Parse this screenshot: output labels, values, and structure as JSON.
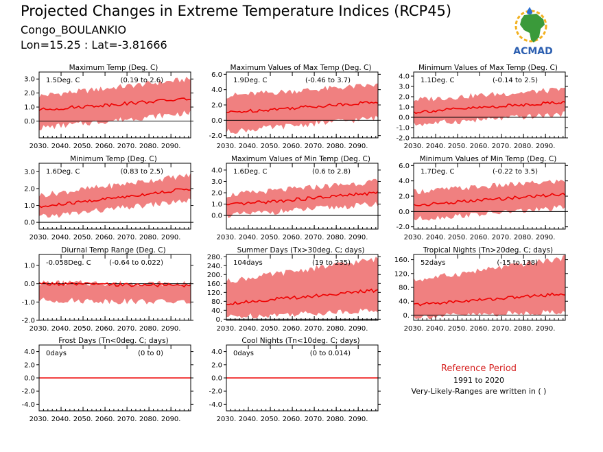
{
  "header": {
    "title": "Projected Changes in Extreme Temperature Indices (RCP45)",
    "location": "Congo_BOULANKIO",
    "coords": "Lon=15.25 : Lat=-3.81666"
  },
  "logo": {
    "text": "ACMAD",
    "icon": "africa-map-logo"
  },
  "reference": {
    "title": "Reference Period",
    "years": "1991 to 2020",
    "note": "Very-Likely-Ranges are written in ( )"
  },
  "colors": {
    "band": "#f08080",
    "line": "#ee0000",
    "zero": "#000000"
  },
  "chart_data": [
    {
      "type": "line",
      "title": "Maximum Temp (Deg. C)",
      "mean_label": "1.5Deg. C",
      "range_label": "(0.19 to 2.6)",
      "x": [
        2030,
        2099
      ],
      "xticks": [
        "2030.",
        "2040.",
        "2050.",
        "2060.",
        "2070.",
        "2080.",
        "2090."
      ],
      "ylim": [
        -1.2,
        3.5
      ],
      "yticks": [
        0,
        1,
        2,
        3
      ],
      "ytick_labels": [
        "0.0",
        "1.0",
        "2.0",
        "3.0"
      ],
      "series": [
        {
          "values": [
            0.8,
            1.6
          ],
          "band_low": [
            -0.5,
            0.6
          ],
          "band_high": [
            1.8,
            3.0
          ]
        }
      ]
    },
    {
      "type": "line",
      "title": "Maximum Values of Max Temp (Deg. C)",
      "mean_label": "1.9Deg. C",
      "range_label": "(-0.46 to 3.7)",
      "x": [
        2030,
        2099
      ],
      "xticks": [
        "2030.",
        "2040.",
        "2050.",
        "2060.",
        "2070.",
        "2080.",
        "2090."
      ],
      "ylim": [
        -2.3,
        6.3
      ],
      "yticks": [
        -2,
        0,
        2,
        4,
        6
      ],
      "ytick_labels": [
        "-2.0",
        "0.0",
        "2.0",
        "4.0",
        "6.0"
      ],
      "series": [
        {
          "values": [
            1.0,
            2.4
          ],
          "band_low": [
            -1.5,
            0.3
          ],
          "band_high": [
            3.2,
            4.6
          ]
        }
      ]
    },
    {
      "type": "line",
      "title": "Minimum Values of Max Temp (Deg. C)",
      "mean_label": "1.1Deg. C",
      "range_label": "(-0.14 to 2.5)",
      "x": [
        2030,
        2099
      ],
      "xticks": [
        "2030.",
        "2040.",
        "2050.",
        "2060.",
        "2070.",
        "2080.",
        "2090."
      ],
      "ylim": [
        -2.0,
        4.4
      ],
      "yticks": [
        -2,
        -1,
        0,
        1,
        2,
        3,
        4
      ],
      "ytick_labels": [
        "-2.0",
        "-1.0",
        "0.0",
        "1.0",
        "2.0",
        "3.0",
        "4.0"
      ],
      "series": [
        {
          "values": [
            0.5,
            1.5
          ],
          "band_low": [
            -0.7,
            0.3
          ],
          "band_high": [
            1.7,
            2.7
          ]
        }
      ]
    },
    {
      "type": "line",
      "title": "Minimum Temp (Deg. C)",
      "mean_label": "1.6Deg. C",
      "range_label": "(0.83 to 2.5)",
      "x": [
        2030,
        2099
      ],
      "xticks": [
        "2030.",
        "2040.",
        "2050.",
        "2060.",
        "2070.",
        "2080.",
        "2090."
      ],
      "ylim": [
        -0.4,
        3.5
      ],
      "yticks": [
        0,
        1,
        2,
        3
      ],
      "ytick_labels": [
        "0.0",
        "1.0",
        "2.0",
        "3.0"
      ],
      "series": [
        {
          "values": [
            0.9,
            2.0
          ],
          "band_low": [
            0.3,
            1.3
          ],
          "band_high": [
            1.6,
            2.8
          ]
        }
      ]
    },
    {
      "type": "line",
      "title": "Maximum Values of Min Temp (Deg. C)",
      "mean_label": "1.6Deg. C",
      "range_label": "(0.6 to 2.8)",
      "x": [
        2030,
        2099
      ],
      "xticks": [
        "2030.",
        "2040.",
        "2050.",
        "2060.",
        "2070.",
        "2080.",
        "2090."
      ],
      "ylim": [
        -1.2,
        4.6
      ],
      "yticks": [
        0,
        1,
        2,
        3,
        4
      ],
      "ytick_labels": [
        "0.0",
        "1.0",
        "2.0",
        "3.0",
        "4.0"
      ],
      "series": [
        {
          "values": [
            0.9,
            2.0
          ],
          "band_low": [
            0.0,
            1.0
          ],
          "band_high": [
            1.8,
            3.0
          ]
        }
      ]
    },
    {
      "type": "line",
      "title": "Minimum Values of Min Temp (Deg. C)",
      "mean_label": "1.7Deg. C",
      "range_label": "(-0.22 to 3.5)",
      "x": [
        2030,
        2099
      ],
      "xticks": [
        "2030.",
        "2040.",
        "2050.",
        "2060.",
        "2070.",
        "2080.",
        "2090."
      ],
      "ylim": [
        -2.3,
        6.3
      ],
      "yticks": [
        -2,
        0,
        2,
        4,
        6
      ],
      "ytick_labels": [
        "-2.0",
        "0.0",
        "2.0",
        "4.0",
        "6.0"
      ],
      "series": [
        {
          "values": [
            0.8,
            2.3
          ],
          "band_low": [
            -1.0,
            0.5
          ],
          "band_high": [
            2.6,
            4.0
          ]
        }
      ]
    },
    {
      "type": "line",
      "title": "Diurnal Temp Range (Deg. C)",
      "mean_label": "-0.058Deg. C",
      "range_label": "(-0.64 to 0.022)",
      "x": [
        2030,
        2099
      ],
      "xticks": [
        "2030.",
        "2040.",
        "2050.",
        "2060.",
        "2070.",
        "2080.",
        "2090."
      ],
      "ylim": [
        -2.0,
        1.6
      ],
      "yticks": [
        -2,
        -1,
        0,
        1
      ],
      "ytick_labels": [
        "-2.0",
        "-1.0",
        "0.0",
        "1.0"
      ],
      "series": [
        {
          "values": [
            0.0,
            -0.1
          ],
          "band_low": [
            -0.9,
            -1.0
          ],
          "band_high": [
            0.05,
            0.0
          ]
        }
      ]
    },
    {
      "type": "line",
      "title": "Summer Days (Tx>30deg. C; days)",
      "mean_label": "104days",
      "range_label": "(19 to 235)",
      "x": [
        2030,
        2099
      ],
      "xticks": [
        "2030.",
        "2040.",
        "2050.",
        "2060.",
        "2070.",
        "2080.",
        "2090."
      ],
      "ylim": [
        -5,
        290
      ],
      "yticks": [
        0,
        40,
        80,
        120,
        160,
        200,
        240,
        280
      ],
      "ytick_labels": [
        "0.",
        "40.",
        "80.",
        "120.",
        "160.",
        "200.",
        "240.",
        "280."
      ],
      "series": [
        {
          "values": [
            70,
            130
          ],
          "band_low": [
            10,
            40
          ],
          "band_high": [
            170,
            270
          ]
        }
      ]
    },
    {
      "type": "line",
      "title": "Tropical Nights (Tn>20deg. C; days)",
      "mean_label": "52days",
      "range_label": "(-15 to 138)",
      "x": [
        2030,
        2099
      ],
      "xticks": [
        "2030.",
        "2040.",
        "2050.",
        "2060.",
        "2070.",
        "2080.",
        "2090."
      ],
      "ylim": [
        -15,
        175
      ],
      "yticks": [
        0,
        40,
        80,
        120,
        160
      ],
      "ytick_labels": [
        "0.",
        "40.",
        "80.",
        "120.",
        "160."
      ],
      "series": [
        {
          "values": [
            30,
            62
          ],
          "band_low": [
            -5,
            10
          ],
          "band_high": [
            100,
            165
          ]
        }
      ]
    },
    {
      "type": "line",
      "title": "Frost Days (Tn<0deg. C; days)",
      "mean_label": "0days",
      "range_label": "(0 to 0)",
      "x": [
        2030,
        2099
      ],
      "xticks": [
        "2030.",
        "2040.",
        "2050.",
        "2060.",
        "2070.",
        "2080.",
        "2090."
      ],
      "ylim": [
        -5,
        5
      ],
      "yticks": [
        -4,
        -2,
        0,
        2,
        4
      ],
      "ytick_labels": [
        "-4.0",
        "-2.0",
        "0.0",
        "2.0",
        "4.0"
      ],
      "series": [
        {
          "values": [
            0,
            0
          ],
          "band_low": [
            0,
            0
          ],
          "band_high": [
            0,
            0
          ]
        }
      ]
    },
    {
      "type": "line",
      "title": "Cool Nights (Tn<10deg. C; days)",
      "mean_label": "0days",
      "range_label": "(0 to 0.014)",
      "x": [
        2030,
        2099
      ],
      "xticks": [
        "2030.",
        "2040.",
        "2050.",
        "2060.",
        "2070.",
        "2080.",
        "2090."
      ],
      "ylim": [
        -5,
        5
      ],
      "yticks": [
        -4,
        -2,
        0,
        2,
        4
      ],
      "ytick_labels": [
        "-4.0",
        "-2.0",
        "0.0",
        "2.0",
        "4.0"
      ],
      "series": [
        {
          "values": [
            0,
            0
          ],
          "band_low": [
            0,
            0
          ],
          "band_high": [
            0,
            0
          ]
        }
      ]
    }
  ]
}
